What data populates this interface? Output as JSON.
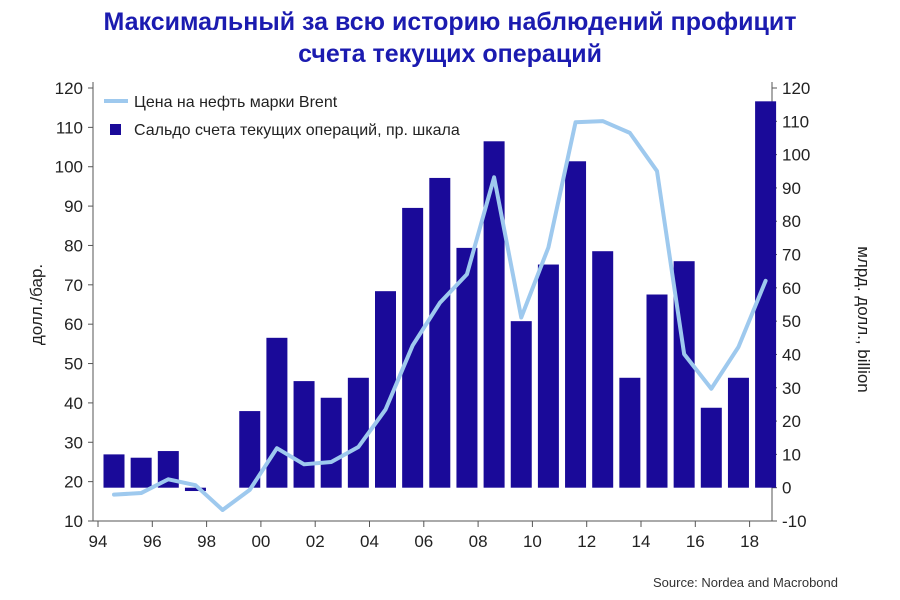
{
  "title": {
    "line1": "Максимальный за всю историю наблюдений профицит",
    "line2": "счета текущих операций"
  },
  "source": "Source: Nordea and Macrobond",
  "colors": {
    "bars": "#1a0a99",
    "line": "#9ec9ee",
    "title": "#1b1bb0"
  },
  "chart_data": {
    "type": "bar+line",
    "x_ticks": [
      "94",
      "96",
      "98",
      "00",
      "02",
      "04",
      "06",
      "08",
      "10",
      "12",
      "14",
      "16",
      "18"
    ],
    "years": [
      1994,
      1995,
      1996,
      1997,
      1998,
      1999,
      2000,
      2001,
      2002,
      2003,
      2004,
      2005,
      2006,
      2007,
      2008,
      2009,
      2010,
      2011,
      2012,
      2013,
      2014,
      2015,
      2016,
      2017,
      2018
    ],
    "ylabel_left": "долл./бар.",
    "ylabel_right": "млрд. долл., billion",
    "ylim_left": [
      10,
      120
    ],
    "yticks_left": [
      10,
      20,
      30,
      40,
      50,
      60,
      70,
      80,
      90,
      100,
      110,
      120
    ],
    "ylim_right": [
      -10,
      120
    ],
    "yticks_right": [
      -10,
      0,
      10,
      20,
      30,
      40,
      50,
      60,
      70,
      80,
      90,
      100,
      110,
      120
    ],
    "legend_position": "top-left",
    "series": [
      {
        "name": "Цена на нефть марки Brent",
        "type": "line",
        "axis": "left",
        "values": [
          16.7,
          17.1,
          20.6,
          19.1,
          12.8,
          17.9,
          28.5,
          24.4,
          25.0,
          28.8,
          38.3,
          54.6,
          65.4,
          72.7,
          97.3,
          61.7,
          79.5,
          111.3,
          111.6,
          108.6,
          98.9,
          52.4,
          43.6,
          54.2,
          71.0
        ]
      },
      {
        "name": "Сальдо счета текущих операций, пр. шкала",
        "type": "bar",
        "axis": "right",
        "values": [
          10,
          9,
          11,
          -1,
          0,
          23,
          45,
          32,
          27,
          33,
          59,
          84,
          93,
          72,
          104,
          50,
          67,
          98,
          71,
          33,
          58,
          68,
          24,
          33,
          116
        ]
      }
    ]
  }
}
